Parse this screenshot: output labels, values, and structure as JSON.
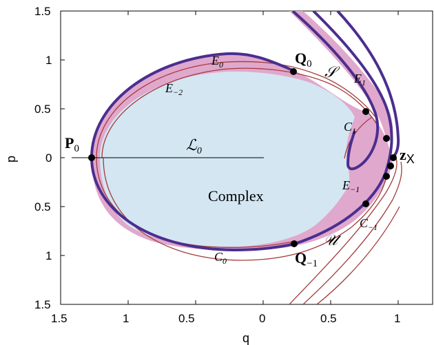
{
  "axes": {
    "xlabel": "q",
    "ylabel": "p",
    "xticks": [
      "1.5",
      "1",
      "0.5",
      "0",
      "0.5",
      "1"
    ],
    "yticks": [
      "1.5",
      "1",
      "0.5",
      "0",
      "0.5",
      "1",
      "1.5"
    ]
  },
  "labels": {
    "E0": "E",
    "E0_sub": "0",
    "Em2": "E",
    "Em2_sub": "−2",
    "E1": "E",
    "E1_sub": "1",
    "Em1": "E",
    "Em1_sub": "−1",
    "C1": "C",
    "C1_sub": "1",
    "Cm1": "C",
    "Cm1_sub": "−1",
    "C0": "C",
    "C0_sub": "0",
    "S": "𝒮",
    "U": "𝒰",
    "L0": "ℒ",
    "L0_sub": "0",
    "complex": "Complex",
    "P0": "P",
    "P0_sub": "0",
    "Q0": "Q",
    "Q0_sub": "0",
    "Qm1": "Q",
    "Qm1_sub": "−1",
    "zX": "z",
    "zX_sub": "X"
  },
  "colors": {
    "complex_fill": "#d3e6f2",
    "pink_fill": "#e0a8cc",
    "boundary": "#4b2e8f",
    "thin": "#a33a3a"
  }
}
